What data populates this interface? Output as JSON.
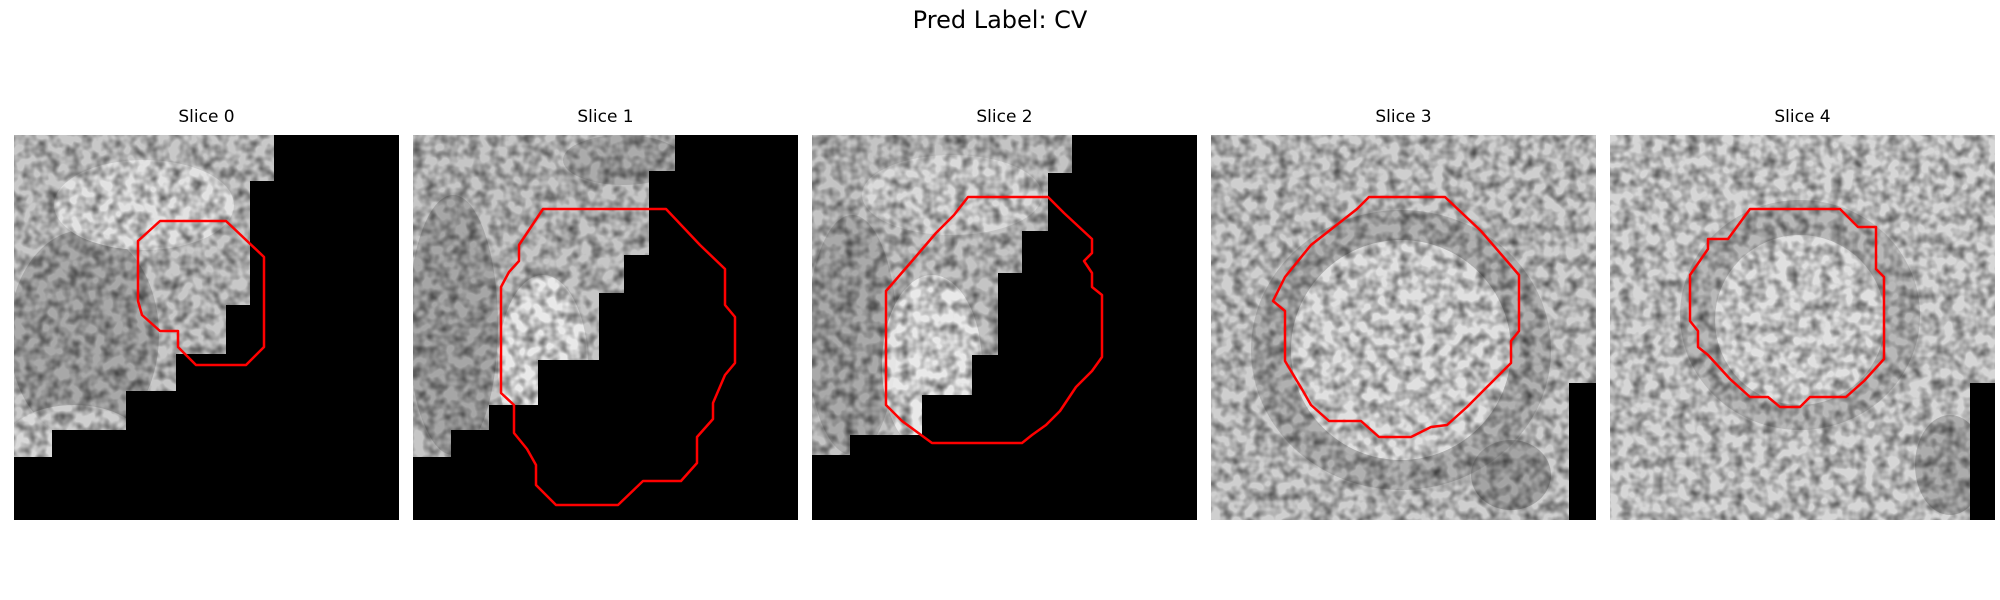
{
  "figure": {
    "title": "Pred Label: CV",
    "slices": [
      {
        "label": "Slice 0"
      },
      {
        "label": "Slice 1"
      },
      {
        "label": "Slice 2"
      },
      {
        "label": "Slice 3"
      },
      {
        "label": "Slice 4"
      }
    ],
    "contour_color": "#ff0000",
    "image_colormap": "gray"
  }
}
